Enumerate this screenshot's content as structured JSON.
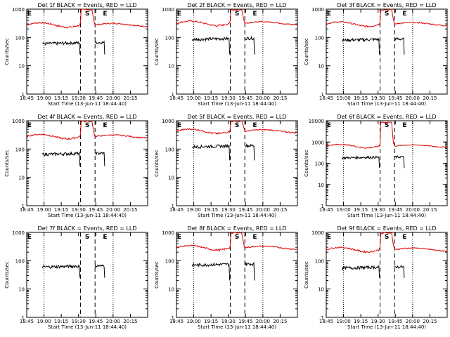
{
  "chart_data": [
    {
      "type": "line",
      "title": "Det 1f BLACK = Events, RED = LLD",
      "xlabel": "Start Time (13-Jun-11 18:44:40)",
      "ylabel": "Counts/sec",
      "yscale": "log",
      "ylim": [
        1,
        1000
      ],
      "yticks": [
        "1",
        "10",
        "100",
        "1000"
      ],
      "xticks": [
        "18:45",
        "19:00",
        "19:15",
        "19:30",
        "19:45",
        "20:00",
        "20:15"
      ],
      "markers": {
        "E1": "E",
        "S": "S",
        "E2": "E"
      },
      "series": [
        {
          "name": "Events",
          "color": "#000000",
          "level": 60,
          "drop_to": 25
        },
        {
          "name": "LLD",
          "color": "#e00000",
          "level": 280,
          "peak": 1000
        }
      ]
    },
    {
      "type": "line",
      "title": "Det 2f BLACK = Events, RED = LLD",
      "xlabel": "Start Time (13-Jun-11 18:44:40)",
      "ylabel": "Counts/sec",
      "yscale": "log",
      "ylim": [
        1,
        1000
      ],
      "yticks": [
        "1",
        "10",
        "100",
        "1000"
      ],
      "xticks": [
        "18:45",
        "19:00",
        "19:15",
        "19:30",
        "19:45",
        "20:00",
        "20:15"
      ],
      "markers": {
        "E1": "E",
        "S": "S",
        "E2": "E"
      },
      "series": [
        {
          "name": "Events",
          "color": "#000000",
          "level": 85,
          "drop_to": 25
        },
        {
          "name": "LLD",
          "color": "#e00000",
          "level": 320,
          "peak": 1000
        }
      ]
    },
    {
      "type": "line",
      "title": "Det 3f BLACK = Events, RED = LLD",
      "xlabel": "Start Time (13-Jun-11 18:44:40)",
      "ylabel": "Counts/sec",
      "yscale": "log",
      "ylim": [
        1,
        1000
      ],
      "yticks": [
        "1",
        "10",
        "100",
        "1000"
      ],
      "xticks": [
        "18:45",
        "19:00",
        "19:15",
        "19:30",
        "19:45",
        "20:00",
        "20:15"
      ],
      "markers": {
        "E1": "E",
        "S": "S",
        "E2": "E"
      },
      "series": [
        {
          "name": "Events",
          "color": "#000000",
          "level": 80,
          "drop_to": 25
        },
        {
          "name": "LLD",
          "color": "#e00000",
          "level": 300,
          "peak": 1000
        }
      ]
    },
    {
      "type": "line",
      "title": "Det 4f BLACK = Events, RED = LLD",
      "xlabel": "Start Time (13-Jun-11 18:44:40)",
      "ylabel": "Counts/sec",
      "yscale": "log",
      "ylim": [
        1,
        1000
      ],
      "yticks": [
        "1",
        "10",
        "100",
        "1000"
      ],
      "xticks": [
        "18:45",
        "19:00",
        "19:15",
        "19:30",
        "19:45",
        "20:00",
        "20:15"
      ],
      "markers": {
        "E1": "E",
        "S": "S",
        "E2": "E"
      },
      "series": [
        {
          "name": "Events",
          "color": "#000000",
          "level": 65,
          "drop_to": 25
        },
        {
          "name": "LLD",
          "color": "#e00000",
          "level": 280,
          "peak": 1000
        }
      ]
    },
    {
      "type": "line",
      "title": "Det 5f BLACK = Events, RED = LLD",
      "xlabel": "Start Time (13-Jun-11 18:44:40)",
      "ylabel": "Counts/sec",
      "yscale": "log",
      "ylim": [
        1,
        1000
      ],
      "yticks": [
        "1",
        "10",
        "100",
        "1000"
      ],
      "xticks": [
        "18:45",
        "19:00",
        "19:15",
        "19:30",
        "19:45",
        "20:00",
        "20:15"
      ],
      "markers": {
        "E1": "E",
        "S": "S",
        "E2": "E"
      },
      "series": [
        {
          "name": "Events",
          "color": "#000000",
          "level": 120,
          "drop_to": 40
        },
        {
          "name": "LLD",
          "color": "#e00000",
          "level": 430,
          "peak": 1000
        }
      ]
    },
    {
      "type": "line",
      "title": "Det 6f BLACK = Events, RED = LLD",
      "xlabel": "Start Time (13-Jun-11 18:44:40)",
      "ylabel": "Counts/sec",
      "yscale": "log",
      "ylim": [
        1,
        10000
      ],
      "yticks": [
        "1",
        "10",
        "100",
        "1000",
        "10000"
      ],
      "xticks": [
        "18:45",
        "19:00",
        "19:15",
        "19:30",
        "19:45",
        "20:00",
        "20:15"
      ],
      "markers": {
        "E1": "E",
        "S": "S",
        "E2": "E"
      },
      "series": [
        {
          "name": "Events",
          "color": "#000000",
          "level": 180,
          "drop_to": 60
        },
        {
          "name": "LLD",
          "color": "#e00000",
          "level": 650,
          "peak": 9000
        }
      ]
    },
    {
      "type": "line",
      "title": "Det 7f BLACK = Events, RED = LLD",
      "xlabel": "Start Time (13-Jun-11 18:44:40)",
      "ylabel": "Counts/sec",
      "yscale": "log",
      "ylim": [
        1,
        1000
      ],
      "yticks": [
        "1",
        "10",
        "100",
        "1000"
      ],
      "xticks": [
        "18:45",
        "19:00",
        "19:15",
        "19:30",
        "19:45",
        "20:00",
        "20:15"
      ],
      "markers": {
        "E1": "E",
        "S": "S",
        "E2": "E"
      },
      "series": [
        {
          "name": "Events",
          "color": "#000000",
          "level": 60,
          "drop_to": 25
        },
        {
          "name": "LLD",
          "color": "#e00000",
          "level": null,
          "peak": null
        }
      ]
    },
    {
      "type": "line",
      "title": "Det 8f BLACK = Events, RED = LLD",
      "xlabel": "Start Time (13-Jun-11 18:44:40)",
      "ylabel": "Counts/sec",
      "yscale": "log",
      "ylim": [
        1,
        1000
      ],
      "yticks": [
        "1",
        "10",
        "100",
        "1000"
      ],
      "xticks": [
        "18:45",
        "19:00",
        "19:15",
        "19:30",
        "19:45",
        "20:00",
        "20:15"
      ],
      "markers": {
        "E1": "E",
        "S": "S",
        "E2": "E"
      },
      "series": [
        {
          "name": "Events",
          "color": "#000000",
          "level": 70,
          "drop_to": 20
        },
        {
          "name": "LLD",
          "color": "#e00000",
          "level": 290,
          "peak": 1000
        }
      ]
    },
    {
      "type": "line",
      "title": "Det 9f BLACK = Events, RED = LLD",
      "xlabel": "Start Time (13-Jun-11 18:44:40)",
      "ylabel": "Counts/sec",
      "yscale": "log",
      "ylim": [
        1,
        1000
      ],
      "yticks": [
        "1",
        "10",
        "100",
        "1000"
      ],
      "xticks": [
        "18:45",
        "19:00",
        "19:15",
        "19:30",
        "19:45",
        "20:00",
        "20:15"
      ],
      "markers": {
        "E1": "E",
        "S": "S",
        "E2": "E"
      },
      "series": [
        {
          "name": "Events",
          "color": "#000000",
          "level": 55,
          "drop_to": 25
        },
        {
          "name": "LLD",
          "color": "#e00000",
          "level": 250,
          "peak": 1000
        }
      ]
    }
  ]
}
